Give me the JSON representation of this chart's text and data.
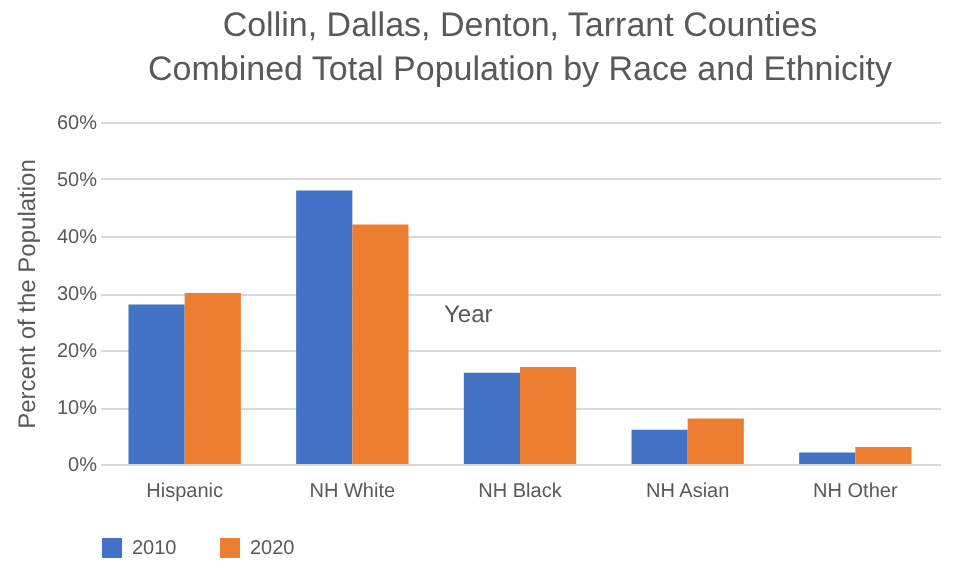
{
  "chart_data": {
    "type": "bar",
    "title": "Collin, Dallas, Denton, Tarrant Counties\nCombined Total Population by Race and Ethnicity",
    "ylabel": "Percent of the Population",
    "annotations": [
      "Year"
    ],
    "categories": [
      "Hispanic",
      "NH White",
      "NH Black",
      "NH Asian",
      "NH Other"
    ],
    "series": [
      {
        "name": "2010",
        "color": "#4472c4",
        "values": [
          28,
          48,
          16,
          6,
          2
        ]
      },
      {
        "name": "2020",
        "color": "#ed7d31",
        "values": [
          30,
          42,
          17,
          8,
          3
        ]
      }
    ],
    "ylim": [
      0,
      60
    ],
    "yticks": [
      {
        "value": 0,
        "label": "0%"
      },
      {
        "value": 10,
        "label": "10%"
      },
      {
        "value": 20,
        "label": "20%"
      },
      {
        "value": 30,
        "label": "30%"
      },
      {
        "value": 40,
        "label": "40%"
      },
      {
        "value": 50,
        "label": "50%"
      },
      {
        "value": 60,
        "label": "60%"
      }
    ],
    "grid": "y",
    "legend": "bottom"
  }
}
